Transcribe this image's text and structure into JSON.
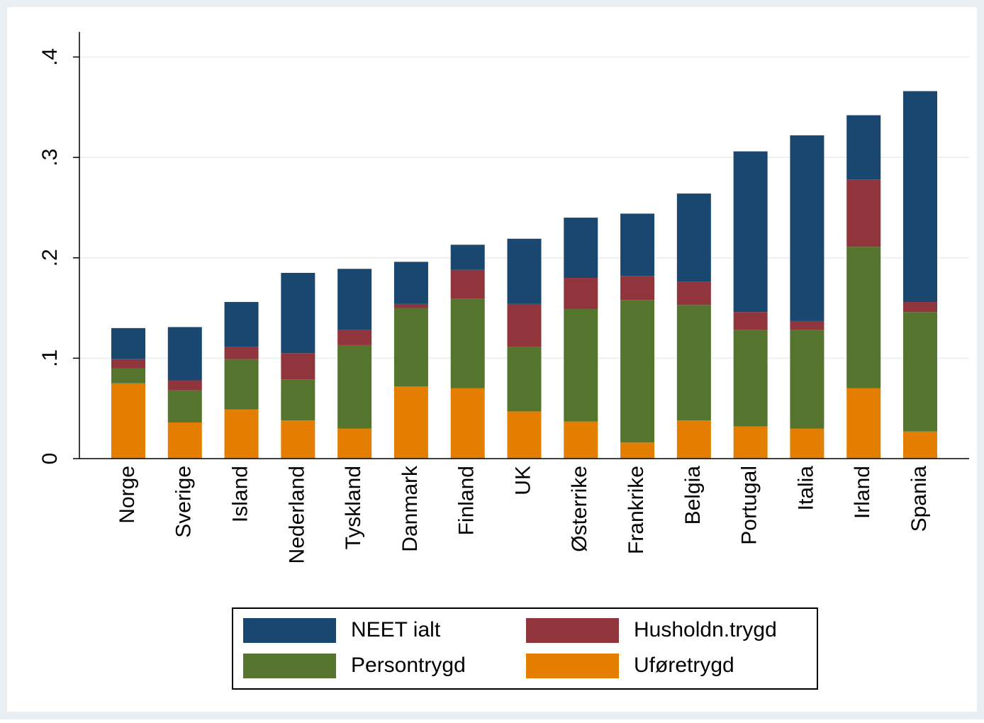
{
  "chart_data": {
    "type": "stacked_bar",
    "categories": [
      "Norge",
      "Sverige",
      "Island",
      "Nederland",
      "Tyskland",
      "Danmark",
      "Finland",
      "UK",
      "Østerrike",
      "Frankrike",
      "Belgia",
      "Portugal",
      "Italia",
      "Irland",
      "Spania"
    ],
    "series": [
      {
        "name": "NEET ialt",
        "color": "#1a476f",
        "values": [
          0.031,
          0.053,
          0.045,
          0.08,
          0.061,
          0.042,
          0.025,
          0.065,
          0.06,
          0.062,
          0.088,
          0.16,
          0.185,
          0.064,
          0.21
        ]
      },
      {
        "name": "Husholdn.trygd",
        "color": "#90353b",
        "values": [
          0.009,
          0.01,
          0.012,
          0.026,
          0.015,
          0.004,
          0.029,
          0.043,
          0.031,
          0.024,
          0.023,
          0.018,
          0.009,
          0.067,
          0.01
        ]
      },
      {
        "name": "Persontrygd",
        "color": "#55752f",
        "values": [
          0.015,
          0.032,
          0.05,
          0.041,
          0.083,
          0.078,
          0.089,
          0.064,
          0.112,
          0.142,
          0.115,
          0.096,
          0.098,
          0.141,
          0.119
        ]
      },
      {
        "name": "Uføretrygd",
        "color": "#e37e00",
        "values": [
          0.075,
          0.036,
          0.049,
          0.038,
          0.03,
          0.072,
          0.07,
          0.047,
          0.037,
          0.016,
          0.038,
          0.032,
          0.03,
          0.07,
          0.027
        ]
      }
    ],
    "ylim": [
      0,
      0.425
    ],
    "yticks": [
      0,
      {
        "value": 0.1,
        "label": ".1"
      },
      {
        "value": 0.2,
        "label": ".2"
      },
      {
        "value": 0.3,
        "label": ".3"
      },
      {
        "value": 0.4,
        "label": ".4"
      }
    ],
    "grid": true,
    "legend": "bottom"
  }
}
